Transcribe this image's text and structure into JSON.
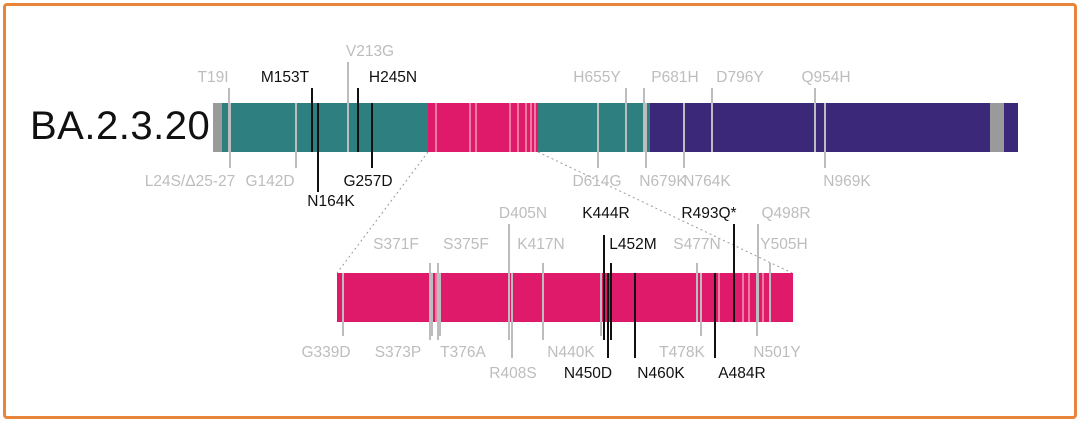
{
  "variant": "BA.2.3.20",
  "colors": {
    "frame": "#e8853a",
    "ntd_segment": "#2e8080",
    "rbd_segment": "#e01a6a",
    "s2_segment": "#3c2878",
    "grey_end": "#9a9a9a",
    "known_mutation": "#bdbdbd",
    "new_mutation": "#111111"
  },
  "full_spike": {
    "mutations_above": [
      {
        "label": "T19I",
        "novel": false
      },
      {
        "label": "M153T",
        "novel": true
      },
      {
        "label": "V213G",
        "novel": false
      },
      {
        "label": "H245N",
        "novel": true
      },
      {
        "label": "H655Y",
        "novel": false
      },
      {
        "label": "P681H",
        "novel": false
      },
      {
        "label": "D796Y",
        "novel": false
      },
      {
        "label": "Q954H",
        "novel": false
      }
    ],
    "mutations_below": [
      {
        "label": "L24S/Δ25-27",
        "novel": false
      },
      {
        "label": "G142D",
        "novel": false
      },
      {
        "label": "N164K",
        "novel": true
      },
      {
        "label": "G257D",
        "novel": true
      },
      {
        "label": "D614G",
        "novel": false
      },
      {
        "label": "N679K",
        "novel": false
      },
      {
        "label": "N764K",
        "novel": false
      },
      {
        "label": "N969K",
        "novel": false
      }
    ]
  },
  "rbd_zoom": {
    "mutations_above": [
      {
        "label": "S371F",
        "novel": false
      },
      {
        "label": "S375F",
        "novel": false
      },
      {
        "label": "D405N",
        "novel": false
      },
      {
        "label": "K417N",
        "novel": false
      },
      {
        "label": "K444R",
        "novel": true
      },
      {
        "label": "L452M",
        "novel": true
      },
      {
        "label": "S477N",
        "novel": false
      },
      {
        "label": "R493Q*",
        "novel": true
      },
      {
        "label": "Q498R",
        "novel": false
      },
      {
        "label": "Y505H",
        "novel": false
      }
    ],
    "mutations_below": [
      {
        "label": "G339D",
        "novel": false
      },
      {
        "label": "S373P",
        "novel": false
      },
      {
        "label": "T376A",
        "novel": false
      },
      {
        "label": "R408S",
        "novel": false
      },
      {
        "label": "N440K",
        "novel": false
      },
      {
        "label": "N450D",
        "novel": true
      },
      {
        "label": "N460K",
        "novel": true
      },
      {
        "label": "T478K",
        "novel": false
      },
      {
        "label": "A484R",
        "novel": true
      },
      {
        "label": "N501Y",
        "novel": false
      }
    ]
  }
}
